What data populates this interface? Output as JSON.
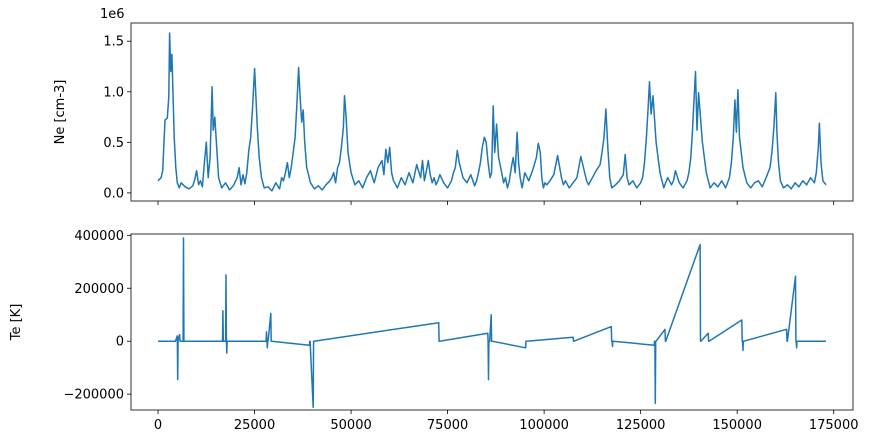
{
  "chart_data": [
    {
      "type": "line",
      "title": "",
      "xlabel": "",
      "ylabel": "Ne [cm-3]",
      "offset_label": "1e6",
      "xlim": [
        -7000,
        180000
      ],
      "ylim": [
        -0.08,
        1.68
      ],
      "yticks": [
        0.0,
        0.5,
        1.0,
        1.5
      ],
      "ytick_labels": [
        "0.0",
        "0.5",
        "1.0",
        "1.5"
      ],
      "xticks": [
        0,
        25000,
        50000,
        75000,
        100000,
        125000,
        150000,
        175000
      ],
      "xtick_labels_visible": false,
      "grid": false,
      "color": "#1f77b4",
      "series": [
        {
          "x": [
            0,
            800,
            1200,
            1800,
            2400,
            2800,
            3000,
            3300,
            3600,
            3900,
            4200,
            4600,
            5000,
            5500,
            6000,
            7000,
            8000,
            9000,
            9500,
            10000,
            10500,
            11000,
            11500,
            12000,
            12500,
            13000,
            13500,
            14000,
            14300,
            14700,
            15200,
            15700,
            16500,
            17500,
            18500,
            19500,
            20500,
            21000,
            21500,
            22000,
            22500,
            23000,
            23500,
            24000,
            24500,
            25000,
            25300,
            25700,
            26200,
            26800,
            27500,
            28500,
            29500,
            30500,
            31500,
            32000,
            32500,
            33000,
            33500,
            34000,
            34500,
            35000,
            35500,
            36000,
            36400,
            36800,
            37200,
            37600,
            38000,
            38500,
            39500,
            40500,
            41500,
            42500,
            43500,
            44500,
            45000,
            45500,
            46000,
            46500,
            47000,
            47500,
            48000,
            48300,
            48700,
            49200,
            50000,
            51000,
            52000,
            53000,
            54000,
            55000,
            56000,
            57000,
            58000,
            58500,
            59000,
            59500,
            60000,
            60500,
            61000,
            62000,
            63000,
            64000,
            65000,
            66000,
            67000,
            68000,
            68500,
            69000,
            69500,
            70000,
            70500,
            71000,
            71500,
            72000,
            72500,
            73000,
            74000,
            75000,
            76000,
            76500,
            77000,
            77500,
            78000,
            79000,
            80000,
            81000,
            82000,
            82500,
            83000,
            83500,
            84000,
            84500,
            85000,
            85500,
            86000,
            86400,
            86800,
            87200,
            87700,
            88200,
            89000,
            89500,
            90000,
            90500,
            91000,
            91500,
            92000,
            92500,
            93000,
            93400,
            93800,
            94300,
            95000,
            96000,
            97000,
            98000,
            98500,
            99000,
            99400,
            99800,
            100200,
            100700,
            101500,
            102500,
            103500,
            104500,
            105000,
            105500,
            106500,
            107500,
            108500,
            109500,
            110500,
            111000,
            111500,
            112500,
            113500,
            114500,
            115000,
            115500,
            116000,
            116500,
            117000,
            117500,
            118500,
            119500,
            120500,
            121000,
            121500,
            122000,
            123000,
            124000,
            125000,
            125500,
            126000,
            126500,
            126900,
            127300,
            127700,
            128200,
            129000,
            130000,
            131000,
            131500,
            132000,
            133000,
            133500,
            134000,
            135000,
            136000,
            137000,
            137500,
            138000,
            138400,
            138800,
            139200,
            139600,
            140000,
            141000,
            142000,
            143000,
            144000,
            145000,
            146000,
            147000,
            148000,
            148500,
            149000,
            149400,
            149800,
            150200,
            150600,
            151500,
            152500,
            153500,
            154500,
            155500,
            156500,
            157500,
            158500,
            159000,
            159500,
            160000,
            160300,
            160700,
            161200,
            162000,
            163000,
            164000,
            165000,
            166000,
            167000,
            168000,
            169000,
            170000,
            170500,
            171000,
            171300,
            171700,
            172200,
            173000
          ],
          "y": [
            0.12,
            0.15,
            0.22,
            0.72,
            0.74,
            0.95,
            1.58,
            1.2,
            1.37,
            0.95,
            0.55,
            0.25,
            0.1,
            0.05,
            0.1,
            0.06,
            0.04,
            0.07,
            0.13,
            0.22,
            0.08,
            0.12,
            0.06,
            0.3,
            0.5,
            0.15,
            0.35,
            1.05,
            0.62,
            0.75,
            0.45,
            0.15,
            0.05,
            0.1,
            0.03,
            0.07,
            0.15,
            0.25,
            0.08,
            0.18,
            0.09,
            0.2,
            0.42,
            0.55,
            0.85,
            1.23,
            1.0,
            0.65,
            0.35,
            0.15,
            0.05,
            0.06,
            0.02,
            0.1,
            0.04,
            0.15,
            0.12,
            0.2,
            0.3,
            0.15,
            0.25,
            0.4,
            0.55,
            0.9,
            1.24,
            0.95,
            0.7,
            0.82,
            0.5,
            0.25,
            0.1,
            0.04,
            0.07,
            0.03,
            0.08,
            0.12,
            0.15,
            0.2,
            0.1,
            0.25,
            0.3,
            0.45,
            0.65,
            0.96,
            0.75,
            0.4,
            0.2,
            0.08,
            0.12,
            0.05,
            0.15,
            0.22,
            0.1,
            0.25,
            0.32,
            0.18,
            0.43,
            0.3,
            0.45,
            0.2,
            0.12,
            0.05,
            0.15,
            0.08,
            0.2,
            0.1,
            0.28,
            0.15,
            0.32,
            0.12,
            0.22,
            0.32,
            0.18,
            0.1,
            0.15,
            0.08,
            0.12,
            0.18,
            0.1,
            0.05,
            0.12,
            0.2,
            0.25,
            0.42,
            0.3,
            0.15,
            0.1,
            0.18,
            0.07,
            0.12,
            0.2,
            0.3,
            0.45,
            0.55,
            0.5,
            0.3,
            0.15,
            0.2,
            0.86,
            0.4,
            0.68,
            0.35,
            0.2,
            0.1,
            0.15,
            0.05,
            0.12,
            0.25,
            0.35,
            0.2,
            0.6,
            0.3,
            0.15,
            0.05,
            0.2,
            0.12,
            0.22,
            0.35,
            0.49,
            0.4,
            0.15,
            0.05,
            0.1,
            0.08,
            0.12,
            0.18,
            0.37,
            0.15,
            0.08,
            0.12,
            0.05,
            0.1,
            0.15,
            0.36,
            0.2,
            0.12,
            0.08,
            0.15,
            0.22,
            0.28,
            0.4,
            0.55,
            0.83,
            0.45,
            0.15,
            0.05,
            0.08,
            0.12,
            0.18,
            0.38,
            0.15,
            0.08,
            0.12,
            0.05,
            0.1,
            0.15,
            0.3,
            0.55,
            0.82,
            1.1,
            0.78,
            0.96,
            0.5,
            0.2,
            0.05,
            0.1,
            0.15,
            0.08,
            0.12,
            0.22,
            0.1,
            0.05,
            0.12,
            0.2,
            0.35,
            0.6,
            0.9,
            1.2,
            0.62,
            0.99,
            0.5,
            0.2,
            0.05,
            0.1,
            0.06,
            0.12,
            0.05,
            0.15,
            0.3,
            0.55,
            0.92,
            0.6,
            1.02,
            0.55,
            0.25,
            0.1,
            0.05,
            0.1,
            0.12,
            0.06,
            0.15,
            0.25,
            0.4,
            0.65,
            0.99,
            0.6,
            0.3,
            0.12,
            0.05,
            0.08,
            0.04,
            0.1,
            0.06,
            0.12,
            0.08,
            0.15,
            0.1,
            0.2,
            0.45,
            0.69,
            0.3,
            0.12,
            0.08
          ]
        }
      ]
    },
    {
      "type": "line",
      "title": "",
      "xlabel": "",
      "ylabel": "Te [K]",
      "xlim": [
        -7000,
        180000
      ],
      "ylim": [
        -260000,
        405000
      ],
      "yticks": [
        -200000,
        0,
        200000,
        400000
      ],
      "ytick_labels": [
        "−200000",
        "0",
        "200000",
        "400000"
      ],
      "xticks": [
        0,
        25000,
        50000,
        75000,
        100000,
        125000,
        150000,
        175000
      ],
      "xtick_labels": [
        "0",
        "25000",
        "50000",
        "75000",
        "100000",
        "125000",
        "150000",
        "175000"
      ],
      "grid": false,
      "color": "#1f77b4",
      "series": [
        {
          "x": [
            0,
            4500,
            5000,
            5100,
            5200,
            5600,
            5700,
            6500,
            6600,
            6700,
            16700,
            16800,
            16900,
            17500,
            17600,
            17700,
            17800,
            17900,
            18000,
            28000,
            28100,
            28200,
            28300,
            28400,
            28500,
            29200,
            29300,
            29400,
            39200,
            39300,
            39400,
            40200,
            40300,
            40400,
            72700,
            72800,
            72900,
            85400,
            85500,
            85600,
            85700,
            85800,
            85900,
            86300,
            86400,
            86500,
            95200,
            95300,
            95400,
            107500,
            107600,
            107700,
            117400,
            117500,
            117600,
            117700,
            117800,
            117900,
            128500,
            128600,
            128700,
            128800,
            128900,
            129000,
            131300,
            131400,
            131500,
            140400,
            140500,
            140600,
            142500,
            142600,
            142700,
            151200,
            151300,
            151400,
            151500,
            151600,
            151700,
            162800,
            162900,
            163000,
            165100,
            165200,
            165300,
            165400,
            165500,
            165600,
            173000
          ],
          "y": [
            0,
            0,
            20000,
            -145000,
            5000,
            25000,
            0,
            0,
            390000,
            0,
            0,
            115000,
            0,
            0,
            250000,
            0,
            -45000,
            0,
            0,
            0,
            35000,
            0,
            -25000,
            0,
            0,
            105000,
            0,
            0,
            -15000,
            0,
            0,
            -250000,
            0,
            0,
            70000,
            0,
            0,
            30000,
            0,
            -145000,
            0,
            0,
            0,
            100000,
            0,
            0,
            -25000,
            0,
            0,
            15000,
            0,
            0,
            55000,
            0,
            0,
            -20000,
            0,
            0,
            -15000,
            0,
            0,
            -235000,
            0,
            0,
            45000,
            0,
            0,
            365000,
            0,
            0,
            30000,
            0,
            0,
            80000,
            0,
            0,
            -35000,
            0,
            0,
            45000,
            0,
            0,
            245000,
            0,
            0,
            -25000,
            0,
            0,
            0
          ]
        }
      ]
    }
  ]
}
